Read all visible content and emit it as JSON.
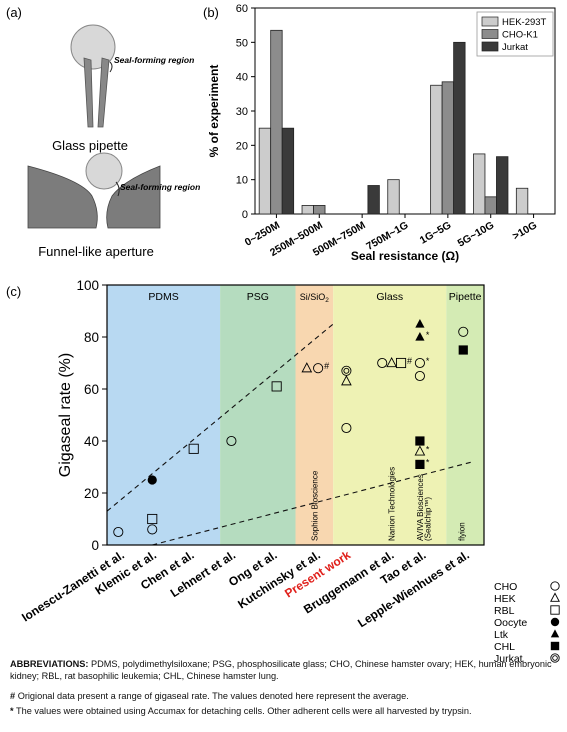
{
  "panel_labels": {
    "a": "(a)",
    "b": "(b)",
    "c": "(c)"
  },
  "schematics": {
    "pipette_seal_label": "Seal-forming region",
    "pipette_caption": "Glass pipette",
    "funnel_seal_label": "Seal-forming region",
    "funnel_caption": "Funnel-like aperture"
  },
  "colors": {
    "hek": "#cccccc",
    "cho": "#8c8c8c",
    "jurkat": "#3a3a3a",
    "pdms": "#b8d9f2",
    "psg": "#b5dcbf",
    "si": "#f8d7b0",
    "glass": "#eef2b4",
    "pipette": "#d4ebb4",
    "present_work": "#e0201b"
  },
  "chart_data": [
    {
      "type": "bar",
      "title": "",
      "xlabel": "Seal resistance (Ω)",
      "ylabel": "% of experiment",
      "ylim": [
        0,
        60
      ],
      "yticks": [
        "0",
        "10",
        "20",
        "30",
        "40",
        "50",
        "60"
      ],
      "categories": [
        "0~250M",
        "250M~500M",
        "500M~750M",
        "750M~1G",
        "1G~5G",
        "5G~10G",
        ">10G"
      ],
      "legend_placement": "top-right",
      "series": [
        {
          "name": "HEK-293T",
          "values": [
            25,
            2.5,
            0,
            10,
            37.5,
            17.5,
            7.5
          ]
        },
        {
          "name": "CHO-K1",
          "values": [
            53.5,
            2.5,
            0,
            0,
            38.5,
            5,
            0
          ]
        },
        {
          "name": "Jurkat",
          "values": [
            25,
            0,
            8.3,
            0,
            50,
            16.7,
            0
          ]
        }
      ]
    },
    {
      "type": "scatter",
      "title": "",
      "xlabel": "",
      "ylabel": "Gigaseal rate (%)",
      "ylim": [
        0,
        100
      ],
      "yticks": [
        "0",
        "20",
        "40",
        "60",
        "80",
        "100"
      ],
      "x_range": [
        0,
        10
      ],
      "grid": false,
      "categories": [
        "Ionescu-Zanetti et al.",
        "Klemic et al.",
        "Chen et al.",
        "Lehnert et al.",
        "Ong et al.",
        "Kutchinsky et al.",
        "Present work",
        "Bruggemann et al.",
        "Tao et al.",
        "Lepple-Wienhues et al."
      ],
      "regions": [
        {
          "label": "PDMS",
          "from": 0,
          "to": 3,
          "color_key": "pdms"
        },
        {
          "label": "PSG",
          "from": 3,
          "to": 5,
          "color_key": "psg"
        },
        {
          "label": "Si/SiO",
          "sub": "2",
          "from": 5,
          "to": 6,
          "color_key": "si"
        },
        {
          "label": "Glass",
          "from": 6,
          "to": 9,
          "color_key": "glass"
        },
        {
          "label": "Pipette",
          "from": 9,
          "to": 10,
          "color_key": "pipette"
        }
      ],
      "vertical_texts": [
        {
          "text": "Sophion Bioscience",
          "x": 5.5
        },
        {
          "text": "Nanion Technologies",
          "x": 7.55
        },
        {
          "text": "AVIVA Biosciences",
          "x": 8.3
        },
        {
          "text": "(Sealchip™)",
          "x": 8.5
        },
        {
          "text": "flyion",
          "x": 9.4
        }
      ],
      "trend_lines": [
        {
          "style": "dashed",
          "from": [
            0,
            13
          ],
          "to": [
            6,
            85
          ]
        },
        {
          "style": "dashed",
          "from": [
            1.2,
            0
          ],
          "to": [
            9.7,
            32
          ]
        }
      ],
      "points": [
        {
          "x": 0.3,
          "y": 5,
          "cell": "CHO"
        },
        {
          "x": 1.2,
          "y": 6,
          "cell": "CHO"
        },
        {
          "x": 1.2,
          "y": 10,
          "cell": "RBL"
        },
        {
          "x": 1.2,
          "y": 25,
          "cell": "Oocyte"
        },
        {
          "x": 2.3,
          "y": 37,
          "cell": "RBL"
        },
        {
          "x": 3.3,
          "y": 40,
          "cell": "CHO"
        },
        {
          "x": 4.5,
          "y": 61,
          "cell": "RBL"
        },
        {
          "x": 5.3,
          "y": 68,
          "cell": "HEK"
        },
        {
          "x": 5.6,
          "y": 68,
          "cell": "CHO",
          "note": "#"
        },
        {
          "x": 6.35,
          "y": 45,
          "cell": "CHO"
        },
        {
          "x": 6.35,
          "y": 63,
          "cell": "HEK"
        },
        {
          "x": 6.35,
          "y": 67,
          "cell": "Jurkat"
        },
        {
          "x": 7.3,
          "y": 70,
          "cell": "CHO"
        },
        {
          "x": 7.55,
          "y": 70,
          "cell": "HEK"
        },
        {
          "x": 7.8,
          "y": 70,
          "cell": "RBL",
          "note": "#"
        },
        {
          "x": 8.3,
          "y": 65,
          "cell": "CHO"
        },
        {
          "x": 8.3,
          "y": 70,
          "cell": "CHO",
          "note": "*"
        },
        {
          "x": 8.3,
          "y": 85,
          "cell": "Ltk"
        },
        {
          "x": 8.3,
          "y": 80,
          "cell": "Ltk",
          "note": "*"
        },
        {
          "x": 8.3,
          "y": 40,
          "cell": "CHL"
        },
        {
          "x": 8.3,
          "y": 36,
          "cell": "HEK",
          "note": "*"
        },
        {
          "x": 8.3,
          "y": 31,
          "cell": "CHL",
          "note": "*"
        },
        {
          "x": 9.45,
          "y": 82,
          "cell": "CHO"
        },
        {
          "x": 9.45,
          "y": 75,
          "cell": "CHL"
        }
      ],
      "legend": [
        {
          "label": "CHO",
          "marker": "circle-open"
        },
        {
          "label": "HEK",
          "marker": "triangle-open"
        },
        {
          "label": "RBL",
          "marker": "square-open"
        },
        {
          "label": "Oocyte",
          "marker": "circle-filled"
        },
        {
          "label": "Ltk",
          "marker": "triangle-filled"
        },
        {
          "label": "CHL",
          "marker": "square-filled"
        },
        {
          "label": "Jurkat",
          "marker": "double-circle"
        }
      ]
    }
  ],
  "footnotes": {
    "abbreviations_head": "ABBREVIATIONS:",
    "abbreviations_text": "PDMS, polydimethylsiloxane; PSG, phosphosilicate glass; CHO, Chinese hamster ovary; HEK, human embryonic kidney; RBL, rat basophilic leukemia; CHL, Chinese hamster lung.",
    "hash_symbol": "#",
    "hash_text": "Origional data present a range of gigaseal rate. The values denoted here represent the average.",
    "star_symbol": "*",
    "star_text": "The values were obtained using Accumax for detaching cells. Other adherent cells were all harvested by trypsin."
  }
}
